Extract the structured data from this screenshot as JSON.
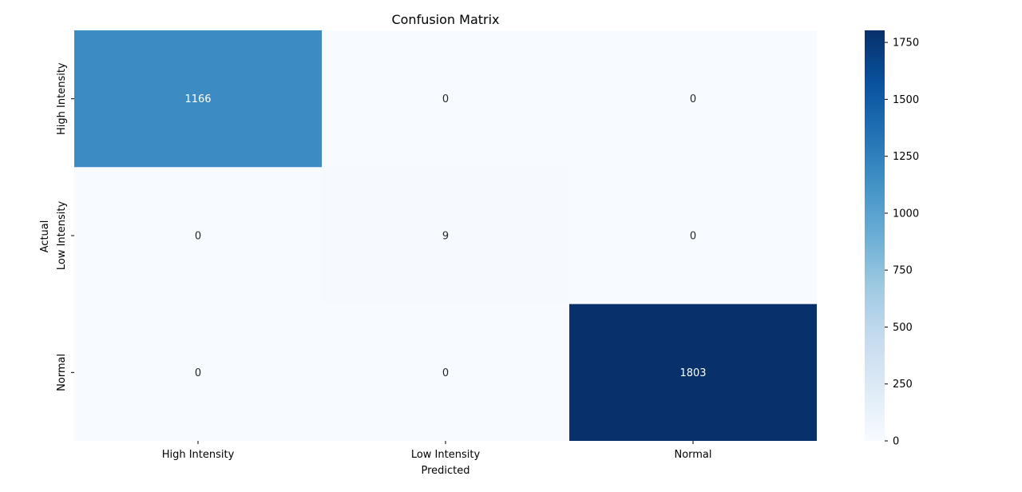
{
  "chart_data": {
    "type": "heatmap",
    "title": "Confusion Matrix",
    "xlabel": "Predicted",
    "ylabel": "Actual",
    "x_categories": [
      "High Intensity",
      "Low Intensity",
      "Normal"
    ],
    "y_categories": [
      "High Intensity",
      "Low Intensity",
      "Normal"
    ],
    "values": [
      [
        1166,
        0,
        0
      ],
      [
        0,
        9,
        0
      ],
      [
        0,
        0,
        1803
      ]
    ],
    "colorbar": {
      "range": [
        0,
        1803
      ],
      "ticks": [
        0,
        250,
        500,
        750,
        1000,
        1250,
        1500,
        1750
      ],
      "colormap": "Blues"
    },
    "annotation_colors": {
      "dark_text": "#262626",
      "light_text": "#ffffff"
    },
    "grid": false,
    "legend": "colorbar-right"
  }
}
